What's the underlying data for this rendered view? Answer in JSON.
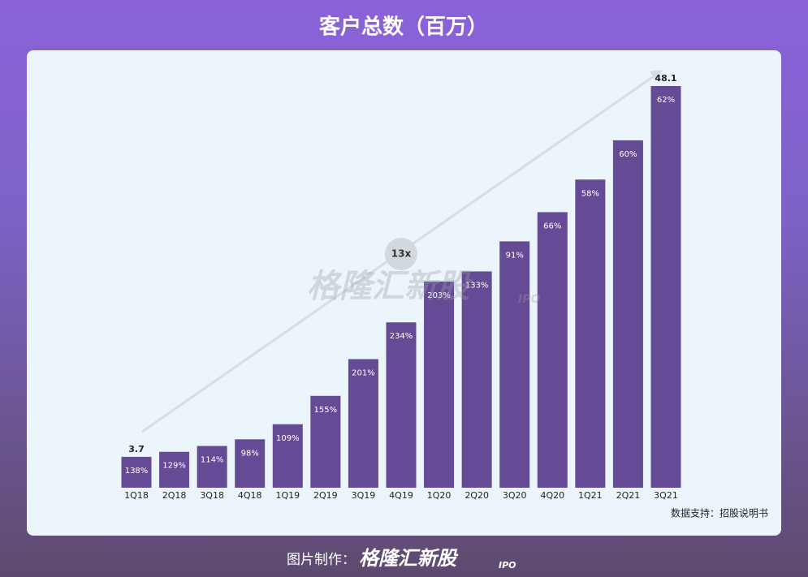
{
  "chart_data": {
    "type": "bar",
    "title": "客户总数（百万）",
    "categories": [
      "1Q18",
      "2Q18",
      "3Q18",
      "4Q18",
      "1Q19",
      "2Q19",
      "3Q19",
      "4Q19",
      "1Q20",
      "2Q20",
      "3Q20",
      "4Q20",
      "1Q21",
      "2Q21",
      "3Q21"
    ],
    "values": [
      3.7,
      4.3,
      5.0,
      5.8,
      7.6,
      11.0,
      15.4,
      19.8,
      24.7,
      25.9,
      29.5,
      33.0,
      36.9,
      41.6,
      48.1
    ],
    "value_labels": [
      "3.7",
      null,
      null,
      null,
      null,
      null,
      null,
      null,
      null,
      null,
      null,
      null,
      null,
      null,
      "48.1"
    ],
    "growth_labels": [
      "138%",
      "129%",
      "114%",
      "98%",
      "109%",
      "155%",
      "201%",
      "234%",
      "203%",
      "133%",
      "91%",
      "66%",
      "58%",
      "60%",
      "62%"
    ],
    "color": "#654b96",
    "annotation": "13x",
    "source": "数据支持：招股说明书"
  },
  "footer": {
    "label": "图片制作：",
    "brand": "格隆汇新股",
    "brand_tag": "IPO"
  }
}
